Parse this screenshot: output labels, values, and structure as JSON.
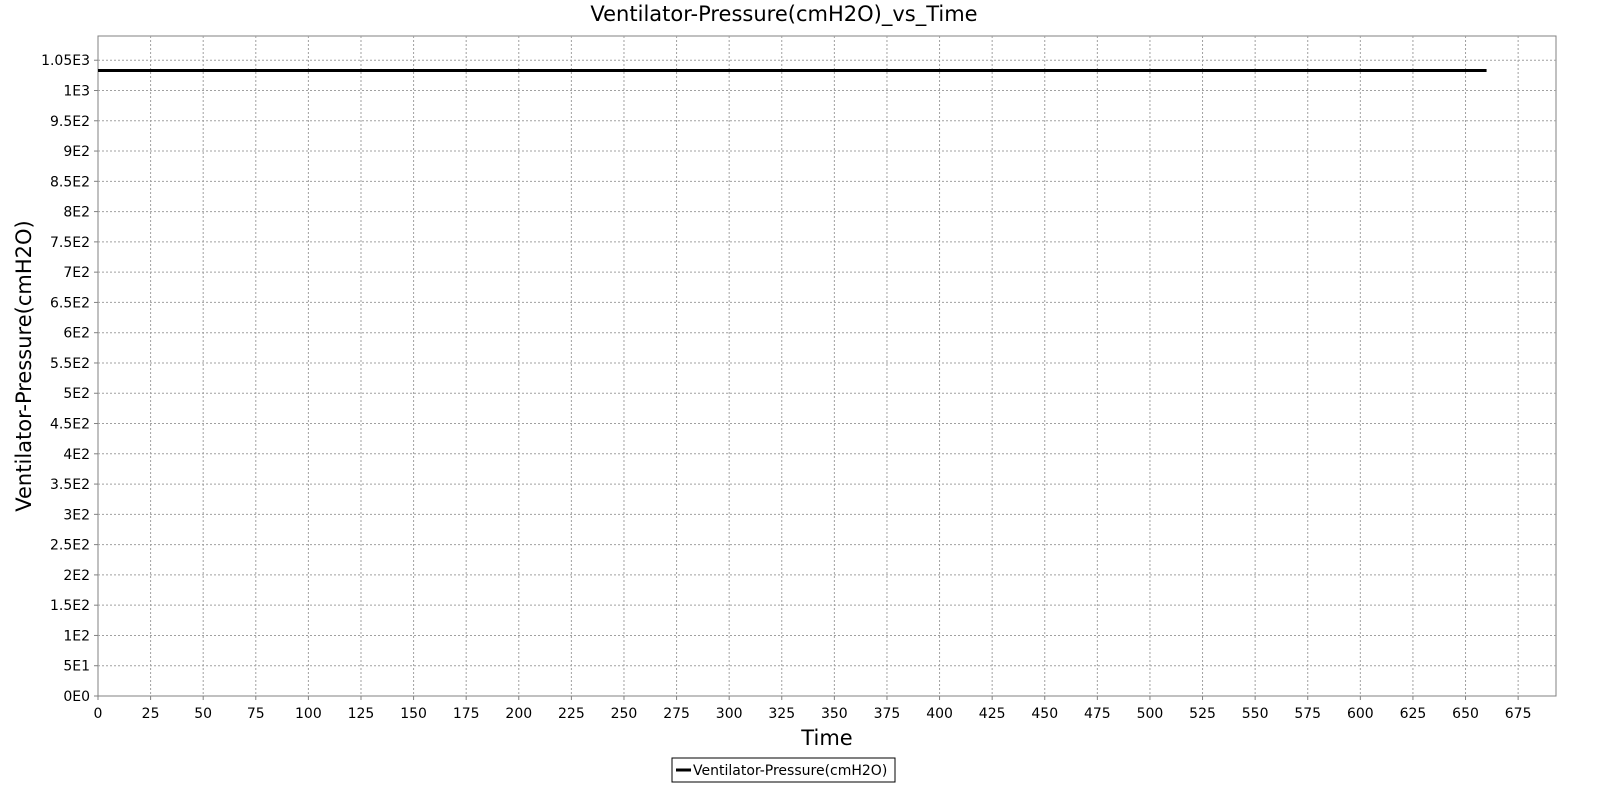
{
  "chart_data": {
    "type": "line",
    "title": "Ventilator-Pressure(cmH2O)_vs_Time",
    "xlabel": "Time",
    "ylabel": "Ventilator-Pressure(cmH2O)",
    "xlim": [
      0,
      693
    ],
    "ylim": [
      0,
      1090
    ],
    "x_ticks": [
      0,
      25,
      50,
      75,
      100,
      125,
      150,
      175,
      200,
      225,
      250,
      275,
      300,
      325,
      350,
      375,
      400,
      425,
      450,
      475,
      500,
      525,
      550,
      575,
      600,
      625,
      650,
      675
    ],
    "x_tick_labels": [
      "0",
      "25",
      "50",
      "75",
      "100",
      "125",
      "150",
      "175",
      "200",
      "225",
      "250",
      "275",
      "300",
      "325",
      "350",
      "375",
      "400",
      "425",
      "450",
      "475",
      "500",
      "525",
      "550",
      "575",
      "600",
      "625",
      "650",
      "675"
    ],
    "y_ticks": [
      0,
      50,
      100,
      150,
      200,
      250,
      300,
      350,
      400,
      450,
      500,
      550,
      600,
      650,
      700,
      750,
      800,
      850,
      900,
      950,
      1000,
      1050
    ],
    "y_tick_labels": [
      "0E0",
      "5E1",
      "1E2",
      "1.5E2",
      "2E2",
      "2.5E2",
      "3E2",
      "3.5E2",
      "4E2",
      "4.5E2",
      "5E2",
      "5.5E2",
      "6E2",
      "6.5E2",
      "7E2",
      "7.5E2",
      "8E2",
      "8.5E2",
      "9E2",
      "9.5E2",
      "1E3",
      "1.05E3"
    ],
    "grid": true,
    "legend_position": "bottom-center",
    "series": [
      {
        "name": "Ventilator-Pressure(cmH2O)",
        "color": "#000000",
        "x": [
          0,
          660
        ],
        "y": [
          1033,
          1033
        ]
      }
    ]
  }
}
